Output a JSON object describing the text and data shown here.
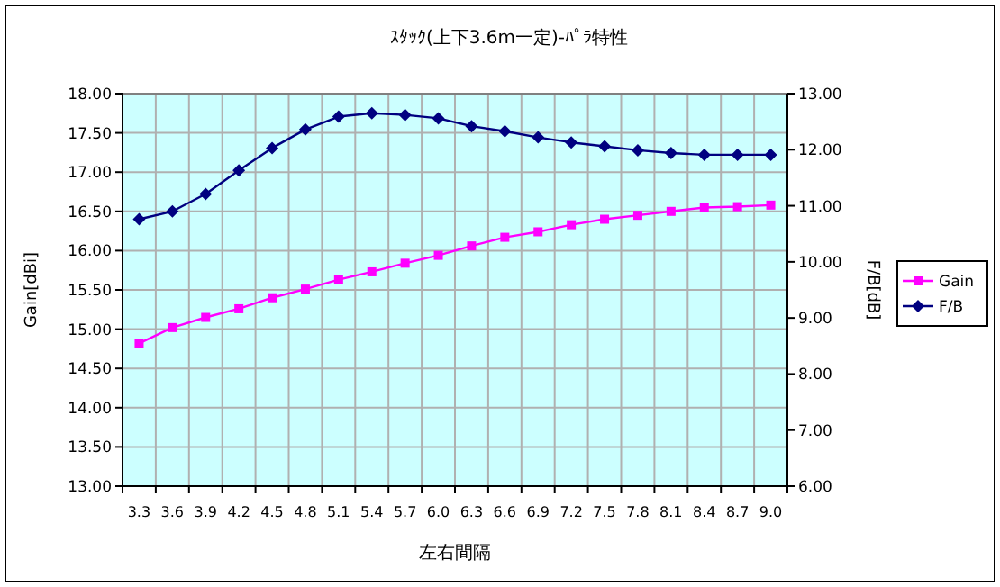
{
  "chart_data": {
    "type": "line",
    "title": "ｽﾀｯｸ(上下3.6m一定)-ﾊﾟﾗ特性",
    "xlabel": "左右間隔",
    "ylabel": "Gain[dBi]",
    "y2label": "F/B[dB]",
    "categories": [
      "3.3",
      "3.6",
      "3.9",
      "4.2",
      "4.5",
      "4.8",
      "5.1",
      "5.4",
      "5.7",
      "6.0",
      "6.3",
      "6.6",
      "6.9",
      "7.2",
      "7.5",
      "7.8",
      "8.1",
      "8.4",
      "8.7",
      "9.0"
    ],
    "series": [
      {
        "name": "Gain",
        "color": "#ff00ff",
        "marker": "square",
        "values": [
          14.82,
          15.02,
          15.15,
          15.26,
          15.4,
          15.51,
          15.63,
          15.73,
          15.84,
          15.94,
          16.06,
          16.17,
          16.24,
          16.33,
          16.4,
          16.45,
          16.5,
          16.55,
          16.56,
          16.58
        ]
      },
      {
        "name": "F/B",
        "color": "#000080",
        "marker": "diamond",
        "axis": "y2",
        "values": [
          10.76,
          10.9,
          11.21,
          11.63,
          12.03,
          12.36,
          12.59,
          12.65,
          12.62,
          12.56,
          12.42,
          12.33,
          12.22,
          12.13,
          12.06,
          11.99,
          11.94,
          11.91,
          11.91,
          11.91
        ]
      }
    ],
    "ylim": [
      13,
      18
    ],
    "yticks": [
      {
        "value": 13,
        "label": "13.00"
      },
      {
        "value": 13.5,
        "label": "13.50"
      },
      {
        "value": 14,
        "label": "14.00"
      },
      {
        "value": 14.5,
        "label": "14.50"
      },
      {
        "value": 15,
        "label": "15.00"
      },
      {
        "value": 15.5,
        "label": "15.50"
      },
      {
        "value": 16,
        "label": "16.00"
      },
      {
        "value": 16.5,
        "label": "16.50"
      },
      {
        "value": 17,
        "label": "17.00"
      },
      {
        "value": 17.5,
        "label": "17.50"
      },
      {
        "value": 18,
        "label": "18.00"
      }
    ],
    "y2lim": [
      6,
      13
    ],
    "y2ticks": [
      {
        "value": 6,
        "label": "6.00"
      },
      {
        "value": 7,
        "label": "7.00"
      },
      {
        "value": 8,
        "label": "8.00"
      },
      {
        "value": 9,
        "label": "9.00"
      },
      {
        "value": 10,
        "label": "10.00"
      },
      {
        "value": 11,
        "label": "11.00"
      },
      {
        "value": 12,
        "label": "12.00"
      },
      {
        "value": 13,
        "label": "13.00"
      }
    ],
    "grid": true,
    "legend": "right",
    "line_style": "solid"
  }
}
